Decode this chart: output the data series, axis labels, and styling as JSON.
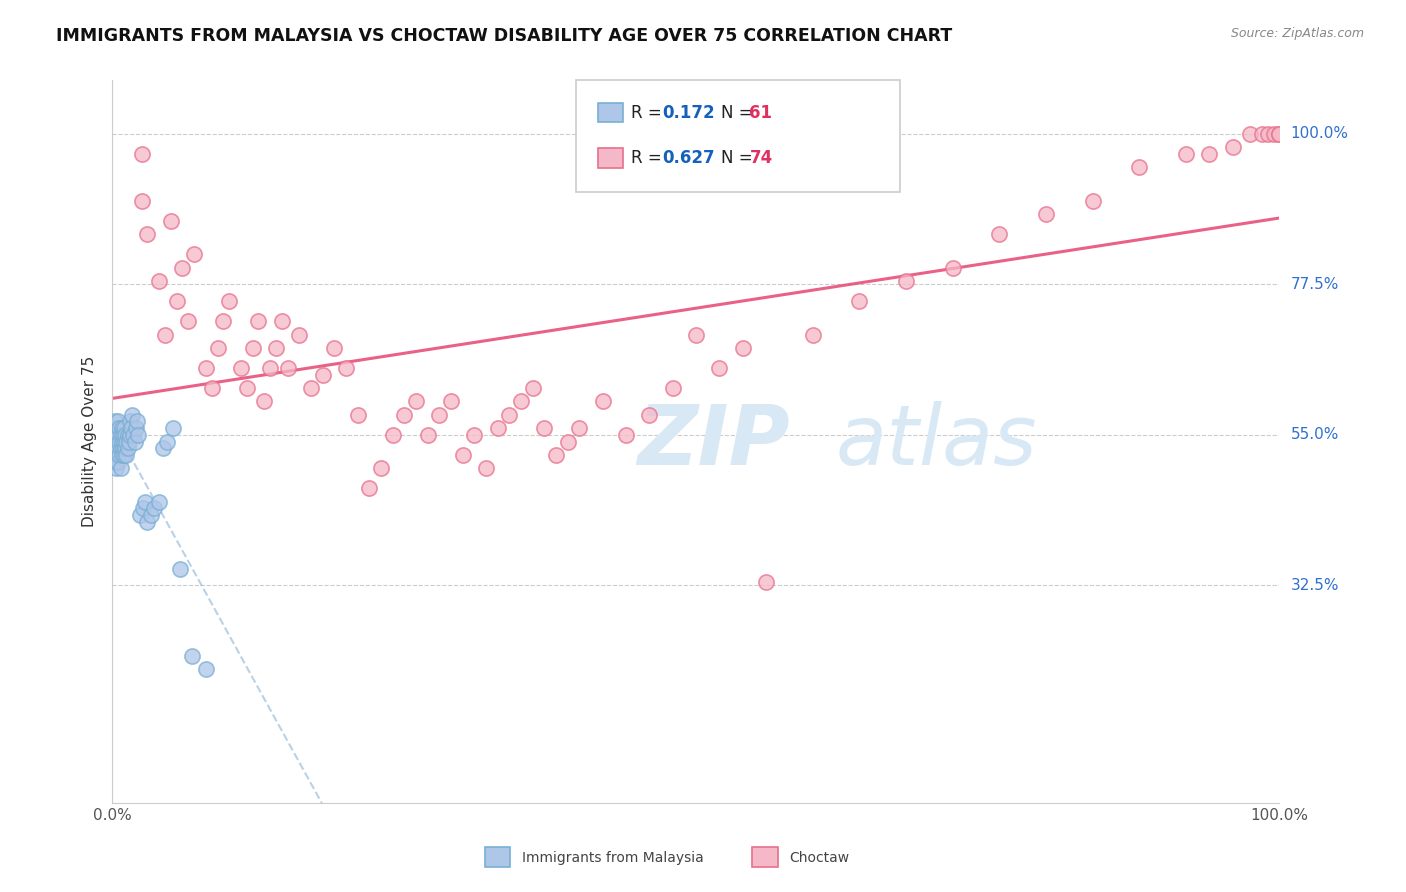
{
  "title": "IMMIGRANTS FROM MALAYSIA VS CHOCTAW DISABILITY AGE OVER 75 CORRELATION CHART",
  "source": "Source: ZipAtlas.com",
  "ylabel": "Disability Age Over 75",
  "r_malaysia": 0.172,
  "n_malaysia": 61,
  "r_choctaw": 0.627,
  "n_choctaw": 74,
  "malaysia_scatter_color": "#aec6e8",
  "malaysia_edge_color": "#7aafd4",
  "choctaw_scatter_color": "#f5b8c8",
  "choctaw_edge_color": "#e8708a",
  "trend_malaysia_color": "#8ab4d8",
  "trend_choctaw_color": "#e8507a",
  "legend_r_color": "#1560bd",
  "legend_n_color": "#e03060",
  "watermark_color": "#d8e8f5",
  "ytick_color": "#3070d0",
  "grid_color": "#cccccc",
  "title_color": "#111111",
  "source_color": "#888888",
  "xlim": [
    0.0,
    1.0
  ],
  "ylim": [
    0.0,
    1.08
  ],
  "ytick_vals": [
    0.325,
    0.55,
    0.775,
    1.0
  ],
  "ytick_labels": [
    "32.5%",
    "55.0%",
    "77.5%",
    "100.0%"
  ],
  "malaysia_x": [
    0.001,
    0.001,
    0.001,
    0.002,
    0.002,
    0.002,
    0.002,
    0.003,
    0.003,
    0.003,
    0.003,
    0.004,
    0.004,
    0.004,
    0.005,
    0.005,
    0.005,
    0.005,
    0.006,
    0.006,
    0.006,
    0.007,
    0.007,
    0.007,
    0.008,
    0.008,
    0.008,
    0.009,
    0.009,
    0.01,
    0.01,
    0.01,
    0.011,
    0.011,
    0.012,
    0.012,
    0.013,
    0.013,
    0.014,
    0.015,
    0.015,
    0.016,
    0.017,
    0.018,
    0.019,
    0.02,
    0.021,
    0.022,
    0.024,
    0.026,
    0.028,
    0.03,
    0.033,
    0.036,
    0.04,
    0.043,
    0.047,
    0.052,
    0.058,
    0.068,
    0.08
  ],
  "malaysia_y": [
    0.56,
    0.54,
    0.55,
    0.53,
    0.52,
    0.56,
    0.57,
    0.54,
    0.5,
    0.53,
    0.51,
    0.55,
    0.52,
    0.54,
    0.53,
    0.51,
    0.55,
    0.57,
    0.52,
    0.54,
    0.56,
    0.53,
    0.55,
    0.5,
    0.52,
    0.54,
    0.56,
    0.53,
    0.55,
    0.52,
    0.54,
    0.56,
    0.53,
    0.55,
    0.52,
    0.54,
    0.53,
    0.55,
    0.54,
    0.55,
    0.57,
    0.56,
    0.58,
    0.55,
    0.54,
    0.56,
    0.57,
    0.55,
    0.43,
    0.44,
    0.45,
    0.42,
    0.43,
    0.44,
    0.45,
    0.53,
    0.54,
    0.56,
    0.35,
    0.22,
    0.2
  ],
  "choctaw_x": [
    0.025,
    0.025,
    0.03,
    0.04,
    0.045,
    0.05,
    0.055,
    0.06,
    0.065,
    0.07,
    0.08,
    0.085,
    0.09,
    0.095,
    0.1,
    0.11,
    0.115,
    0.12,
    0.125,
    0.13,
    0.135,
    0.14,
    0.145,
    0.15,
    0.16,
    0.17,
    0.18,
    0.19,
    0.2,
    0.21,
    0.22,
    0.23,
    0.24,
    0.25,
    0.26,
    0.27,
    0.28,
    0.29,
    0.3,
    0.31,
    0.32,
    0.33,
    0.34,
    0.35,
    0.36,
    0.37,
    0.38,
    0.39,
    0.4,
    0.42,
    0.44,
    0.46,
    0.48,
    0.5,
    0.52,
    0.54,
    0.56,
    0.6,
    0.64,
    0.68,
    0.72,
    0.76,
    0.8,
    0.84,
    0.88,
    0.92,
    0.94,
    0.96,
    0.975,
    0.985,
    0.99,
    0.995,
    1.0,
    1.0
  ],
  "choctaw_y": [
    0.97,
    0.9,
    0.85,
    0.78,
    0.7,
    0.87,
    0.75,
    0.8,
    0.72,
    0.82,
    0.65,
    0.62,
    0.68,
    0.72,
    0.75,
    0.65,
    0.62,
    0.68,
    0.72,
    0.6,
    0.65,
    0.68,
    0.72,
    0.65,
    0.7,
    0.62,
    0.64,
    0.68,
    0.65,
    0.58,
    0.47,
    0.5,
    0.55,
    0.58,
    0.6,
    0.55,
    0.58,
    0.6,
    0.52,
    0.55,
    0.5,
    0.56,
    0.58,
    0.6,
    0.62,
    0.56,
    0.52,
    0.54,
    0.56,
    0.6,
    0.55,
    0.58,
    0.62,
    0.7,
    0.65,
    0.68,
    0.33,
    0.7,
    0.75,
    0.78,
    0.8,
    0.85,
    0.88,
    0.9,
    0.95,
    0.97,
    0.97,
    0.98,
    1.0,
    1.0,
    1.0,
    1.0,
    1.0,
    1.0
  ]
}
